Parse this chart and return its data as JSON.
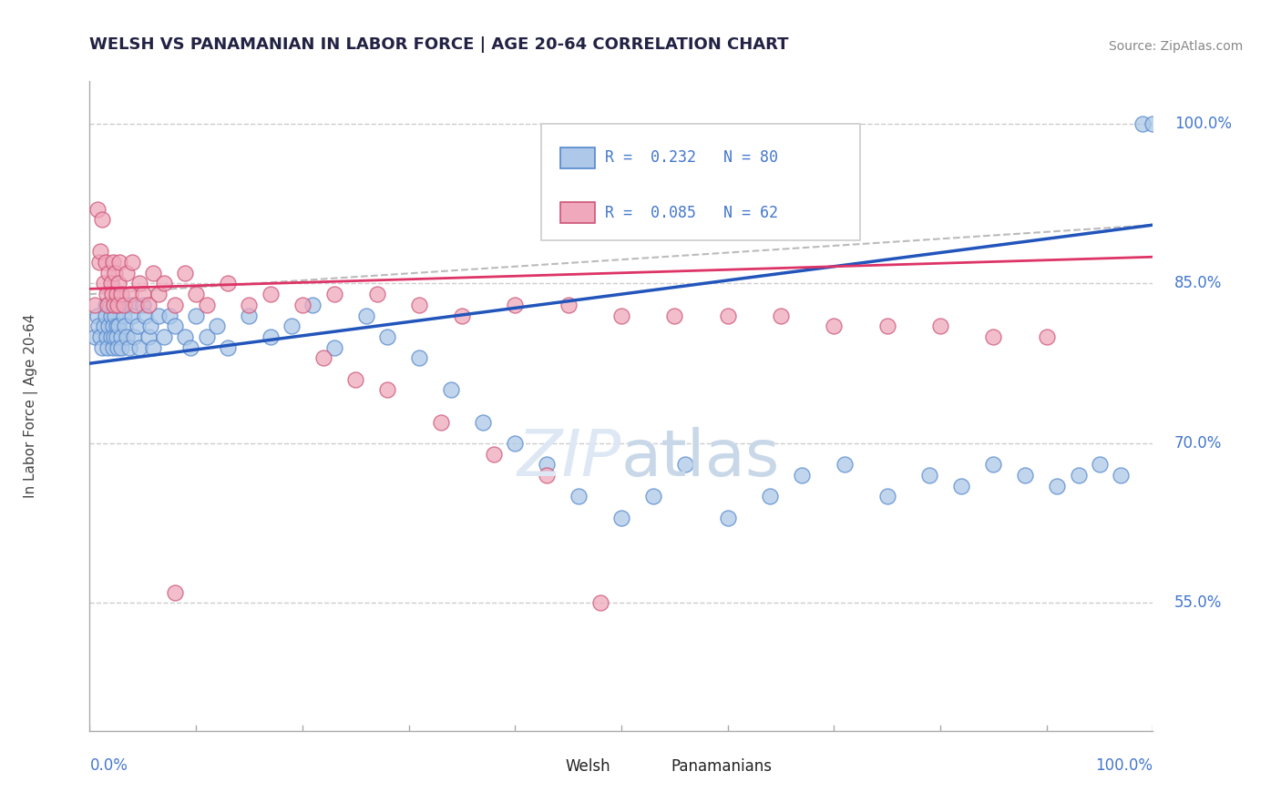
{
  "title": "WELSH VS PANAMANIAN IN LABOR FORCE | AGE 20-64 CORRELATION CHART",
  "source": "Source: ZipAtlas.com",
  "ylabel": "In Labor Force | Age 20-64",
  "welsh_R": 0.232,
  "welsh_N": 80,
  "pana_R": 0.085,
  "pana_N": 62,
  "xlim": [
    0.0,
    1.0
  ],
  "ylim": [
    0.43,
    1.04
  ],
  "ytick_vals": [
    0.55,
    0.7,
    0.85,
    1.0
  ],
  "ytick_labels": [
    "55.0%",
    "70.0%",
    "85.0%",
    "100.0%"
  ],
  "hline_color": "#cccccc",
  "welsh_fill": "#adc8e8",
  "welsh_edge": "#5588cc",
  "pana_fill": "#f0a8bc",
  "pana_edge": "#cc5577",
  "trend_blue": "#2255bb",
  "trend_pink": "#dd3366",
  "trend_gray_dash": "#bbbbbb",
  "title_color": "#222244",
  "source_color": "#888888",
  "yticklabel_color": "#4477cc",
  "background": "#ffffff",
  "legend_box_color": "#dddddd",
  "watermark_color": "#dde8f4",
  "welsh_x": [
    0.005,
    0.007,
    0.008,
    0.01,
    0.012,
    0.013,
    0.015,
    0.015,
    0.016,
    0.017,
    0.018,
    0.018,
    0.02,
    0.02,
    0.022,
    0.022,
    0.023,
    0.024,
    0.025,
    0.025,
    0.026,
    0.027,
    0.028,
    0.03,
    0.03,
    0.032,
    0.033,
    0.035,
    0.037,
    0.038,
    0.04,
    0.042,
    0.045,
    0.047,
    0.05,
    0.052,
    0.055,
    0.057,
    0.06,
    0.065,
    0.07,
    0.075,
    0.08,
    0.09,
    0.095,
    0.1,
    0.11,
    0.12,
    0.13,
    0.15,
    0.17,
    0.19,
    0.21,
    0.23,
    0.26,
    0.28,
    0.31,
    0.34,
    0.37,
    0.4,
    0.43,
    0.46,
    0.5,
    0.53,
    0.56,
    0.6,
    0.64,
    0.67,
    0.71,
    0.75,
    0.79,
    0.82,
    0.85,
    0.88,
    0.91,
    0.93,
    0.95,
    0.97,
    0.99,
    1.0
  ],
  "welsh_y": [
    0.8,
    0.82,
    0.81,
    0.8,
    0.79,
    0.81,
    0.83,
    0.82,
    0.8,
    0.79,
    0.81,
    0.83,
    0.8,
    0.82,
    0.81,
    0.79,
    0.8,
    0.82,
    0.81,
    0.8,
    0.79,
    0.81,
    0.83,
    0.8,
    0.79,
    0.82,
    0.81,
    0.8,
    0.79,
    0.83,
    0.82,
    0.8,
    0.81,
    0.79,
    0.83,
    0.82,
    0.8,
    0.81,
    0.79,
    0.82,
    0.8,
    0.82,
    0.81,
    0.8,
    0.79,
    0.82,
    0.8,
    0.81,
    0.79,
    0.82,
    0.8,
    0.81,
    0.83,
    0.79,
    0.82,
    0.8,
    0.78,
    0.75,
    0.72,
    0.7,
    0.68,
    0.65,
    0.63,
    0.65,
    0.68,
    0.63,
    0.65,
    0.67,
    0.68,
    0.65,
    0.67,
    0.66,
    0.68,
    0.67,
    0.66,
    0.67,
    0.68,
    0.67,
    1.0,
    1.0
  ],
  "pana_x": [
    0.005,
    0.007,
    0.009,
    0.01,
    0.012,
    0.013,
    0.015,
    0.016,
    0.017,
    0.018,
    0.02,
    0.021,
    0.022,
    0.023,
    0.024,
    0.025,
    0.026,
    0.027,
    0.028,
    0.03,
    0.032,
    0.035,
    0.038,
    0.04,
    0.043,
    0.047,
    0.05,
    0.055,
    0.06,
    0.065,
    0.07,
    0.08,
    0.09,
    0.1,
    0.11,
    0.13,
    0.15,
    0.17,
    0.2,
    0.23,
    0.27,
    0.31,
    0.35,
    0.4,
    0.45,
    0.5,
    0.55,
    0.6,
    0.65,
    0.7,
    0.75,
    0.8,
    0.85,
    0.9,
    0.28,
    0.33,
    0.38,
    0.43,
    0.48,
    0.22,
    0.25,
    0.08
  ],
  "pana_y": [
    0.83,
    0.92,
    0.87,
    0.88,
    0.91,
    0.85,
    0.87,
    0.84,
    0.83,
    0.86,
    0.85,
    0.84,
    0.87,
    0.83,
    0.86,
    0.84,
    0.83,
    0.85,
    0.87,
    0.84,
    0.83,
    0.86,
    0.84,
    0.87,
    0.83,
    0.85,
    0.84,
    0.83,
    0.86,
    0.84,
    0.85,
    0.83,
    0.86,
    0.84,
    0.83,
    0.85,
    0.83,
    0.84,
    0.83,
    0.84,
    0.84,
    0.83,
    0.82,
    0.83,
    0.83,
    0.82,
    0.82,
    0.82,
    0.82,
    0.81,
    0.81,
    0.81,
    0.8,
    0.8,
    0.75,
    0.72,
    0.69,
    0.67,
    0.55,
    0.78,
    0.76,
    0.56
  ]
}
